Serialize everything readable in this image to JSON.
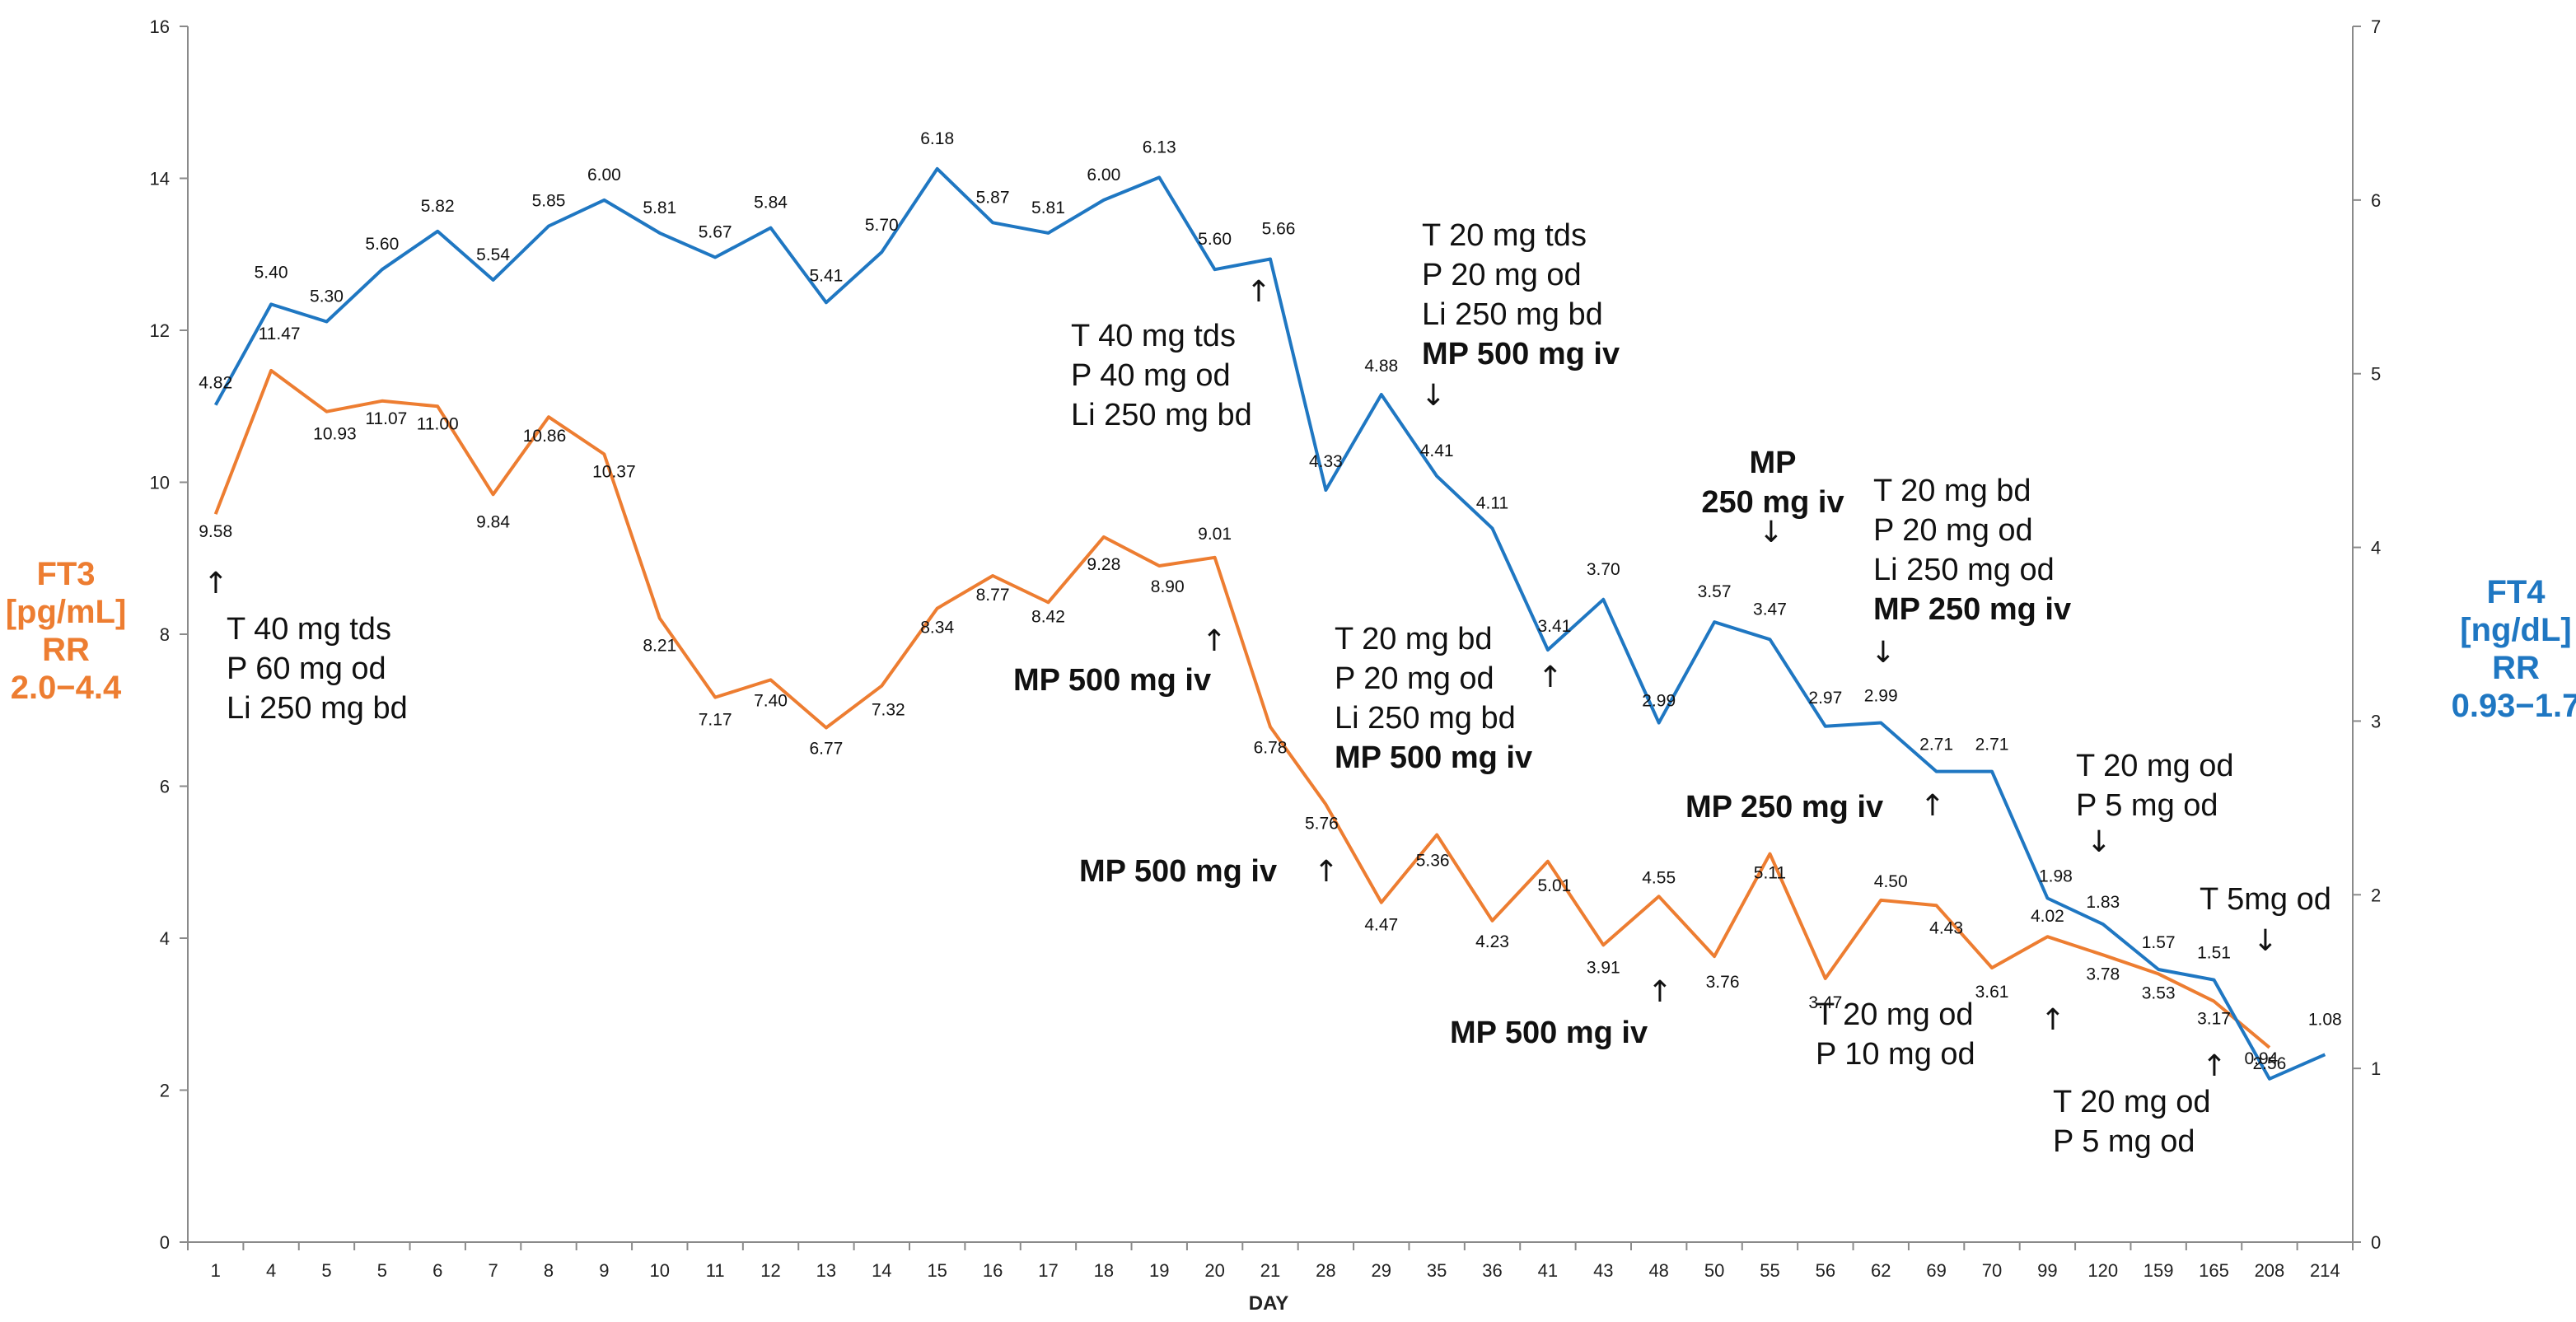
{
  "chart_data": {
    "type": "line",
    "xlabel": "DAY",
    "categories": [
      "1",
      "4",
      "5",
      "5",
      "6",
      "7",
      "8",
      "9",
      "10",
      "11",
      "12",
      "13",
      "14",
      "15",
      "16",
      "17",
      "18",
      "19",
      "20",
      "21",
      "28",
      "29",
      "35",
      "36",
      "41",
      "43",
      "48",
      "50",
      "55",
      "56",
      "62",
      "69",
      "70",
      "99",
      "120",
      "159",
      "165",
      "208",
      "214"
    ],
    "left_axis": {
      "lines": [
        "FT3",
        "[pg/mL]",
        "RR",
        "2.0−4.4"
      ],
      "ylim": [
        0,
        16
      ],
      "ticks": [
        "0",
        "2",
        "4",
        "6",
        "8",
        "10",
        "12",
        "14",
        "16"
      ]
    },
    "right_axis": {
      "lines": [
        "FT4",
        "[ng/dL]",
        "RR",
        "0.93−1.7"
      ],
      "ylim": [
        0,
        7
      ],
      "ticks": [
        "0",
        "1",
        "2",
        "3",
        "4",
        "5",
        "6",
        "7"
      ]
    },
    "series": [
      {
        "name": "FT3",
        "axis": "left",
        "color": "#ED7D31",
        "values": [
          9.58,
          11.47,
          10.93,
          11.07,
          11.0,
          9.84,
          10.86,
          10.37,
          8.21,
          7.17,
          7.4,
          6.77,
          7.32,
          8.34,
          8.77,
          8.42,
          9.28,
          8.9,
          9.01,
          6.78,
          5.76,
          4.47,
          5.36,
          4.23,
          5.01,
          3.91,
          4.55,
          3.76,
          5.11,
          3.47,
          4.5,
          4.43,
          3.61,
          4.02,
          3.78,
          3.53,
          3.17,
          2.56,
          null
        ],
        "labels": [
          "9.58",
          "11.47",
          "10.93",
          "11.07",
          "11.00",
          "9.84",
          "10.86",
          "10.37",
          "8.21",
          "7.17",
          "7.40",
          "6.77",
          "7.32",
          "8.34",
          "8.77",
          "8.42",
          "9.28",
          "8.90",
          "9.01",
          "6.78",
          "5.76",
          "4.47",
          "5.36",
          "4.23",
          "5.01",
          "3.91",
          "4.55",
          "3.76",
          "5.11",
          "3.47",
          "4.50",
          "4.43",
          "3.61",
          "4.02",
          "3.78",
          "3.53",
          "3.17",
          "2.56",
          ""
        ]
      },
      {
        "name": "FT4",
        "axis": "right",
        "color": "#1F77C2",
        "values": [
          4.82,
          5.4,
          5.3,
          5.6,
          5.82,
          5.54,
          5.85,
          6.0,
          5.81,
          5.67,
          5.84,
          5.41,
          5.7,
          6.18,
          5.87,
          5.81,
          6.0,
          6.13,
          5.6,
          5.66,
          4.33,
          4.88,
          4.41,
          4.11,
          3.41,
          3.7,
          2.99,
          3.57,
          3.47,
          2.97,
          2.99,
          2.71,
          2.71,
          1.98,
          1.83,
          1.57,
          1.51,
          0.94,
          1.08
        ],
        "labels": [
          "4.82",
          "5.40",
          "5.30",
          "5.60",
          "5.82",
          "5.54",
          "5.85",
          "6.00",
          "5.81",
          "5.67",
          "5.84",
          "5.41",
          "5.70",
          "6.18",
          "5.87",
          "5.81",
          "6.00",
          "6.13",
          "5.60",
          "5.66",
          "4.33",
          "4.88",
          "4.41",
          "4.11",
          "3.41",
          "3.70",
          "2.99",
          "3.57",
          "3.47",
          "2.97",
          "2.99",
          "2.71",
          "2.71",
          "1.98",
          "1.83",
          "1.57",
          "1.51",
          "0.94",
          "1.08"
        ]
      }
    ],
    "annotations": [
      {
        "arrow": "↑",
        "lines": [
          {
            "t": "T 40 mg tds",
            "b": false
          },
          {
            "t": "P 60 mg od",
            "b": false
          },
          {
            "t": "Li 250 mg bd",
            "b": false
          }
        ]
      },
      {
        "arrow": "↑",
        "lines": [
          {
            "t": "T 40 mg tds",
            "b": false
          },
          {
            "t": "P 40 mg od",
            "b": false
          },
          {
            "t": "Li 250 mg bd",
            "b": false
          }
        ]
      },
      {
        "arrow": "↓",
        "lines": [
          {
            "t": "T 20 mg tds",
            "b": false
          },
          {
            "t": "P 20 mg od",
            "b": false
          },
          {
            "t": "Li 250 mg bd",
            "b": false
          },
          {
            "t": "MP 500 mg iv",
            "b": true
          }
        ]
      },
      {
        "arrow": "↑",
        "lines": [
          {
            "t": "MP 500 mg iv",
            "b": true
          }
        ]
      },
      {
        "arrow": "↑",
        "lines": [
          {
            "t": "MP 500 mg iv",
            "b": true
          }
        ]
      },
      {
        "arrow": "↑",
        "lines": [
          {
            "t": "T 20 mg bd",
            "b": false
          },
          {
            "t": "P 20 mg od",
            "b": false
          },
          {
            "t": "Li 250 mg bd",
            "b": false
          },
          {
            "t": "MP  500 mg iv",
            "b": true
          }
        ]
      },
      {
        "arrow": "↑",
        "lines": [
          {
            "t": "MP 500 mg iv",
            "b": true
          }
        ]
      },
      {
        "arrow": "↓",
        "lines": [
          {
            "t": "MP",
            "b": true
          },
          {
            "t": "250 mg iv",
            "b": true
          }
        ]
      },
      {
        "arrow": "↑",
        "lines": [
          {
            "t": "MP 250 mg iv",
            "b": true
          }
        ]
      },
      {
        "arrow": "↓",
        "lines": [
          {
            "t": "T 20 mg bd",
            "b": false
          },
          {
            "t": "P 20 mg od",
            "b": false
          },
          {
            "t": "Li 250 mg od",
            "b": false
          },
          {
            "t": "MP 250 mg iv",
            "b": true
          }
        ]
      },
      {
        "arrow": "↑",
        "lines": [
          {
            "t": "T 20 mg od",
            "b": false
          },
          {
            "t": "P 10 mg od",
            "b": false
          }
        ]
      },
      {
        "arrow": "↓",
        "lines": [
          {
            "t": "T 20 mg od",
            "b": false
          },
          {
            "t": "P 5 mg od",
            "b": false
          }
        ]
      },
      {
        "arrow": "↑",
        "lines": [
          {
            "t": "T 20 mg od",
            "b": false
          },
          {
            "t": "P 5 mg od",
            "b": false
          }
        ]
      },
      {
        "arrow": "↓",
        "lines": [
          {
            "t": "T 5mg od",
            "b": false
          }
        ]
      }
    ]
  }
}
